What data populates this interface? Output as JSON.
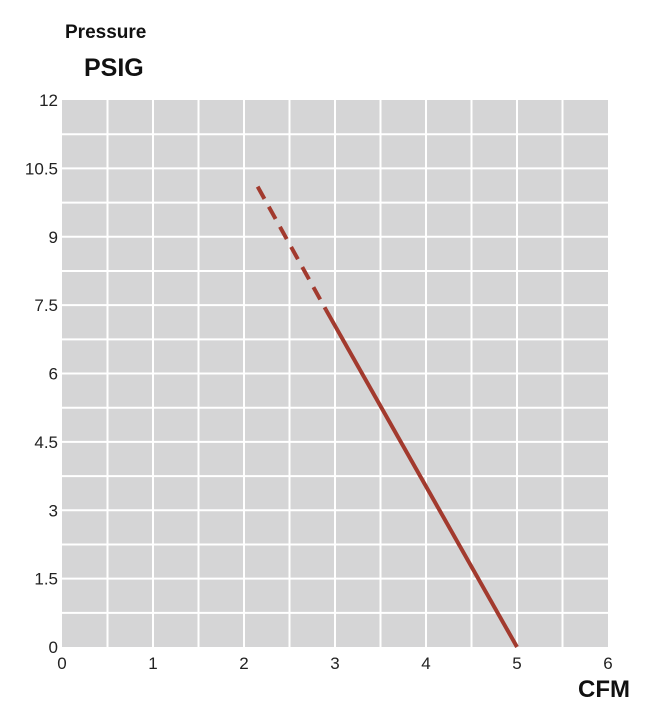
{
  "chart_data": {
    "type": "line",
    "ylabel_line1": "Pressure",
    "ylabel_line2": "PSIG",
    "xlabel": "CFM",
    "xlim": [
      0,
      6
    ],
    "ylim": [
      0,
      12
    ],
    "x_ticks": [
      "0",
      "1",
      "2",
      "3",
      "4",
      "5",
      "6"
    ],
    "y_ticks": [
      "0",
      "1.5",
      "3",
      "4.5",
      "6",
      "7.5",
      "9",
      "10.5",
      "12"
    ],
    "grid": true,
    "plot_background": "#d5d5d6",
    "grid_color": "#ffffff",
    "line_color": "#a23a2e",
    "series": [
      {
        "style": "dashed",
        "x": [
          2.15,
          2.9
        ],
        "y": [
          10.1,
          7.4
        ]
      },
      {
        "style": "solid",
        "x": [
          2.9,
          5.0
        ],
        "y": [
          7.4,
          0
        ]
      }
    ]
  }
}
